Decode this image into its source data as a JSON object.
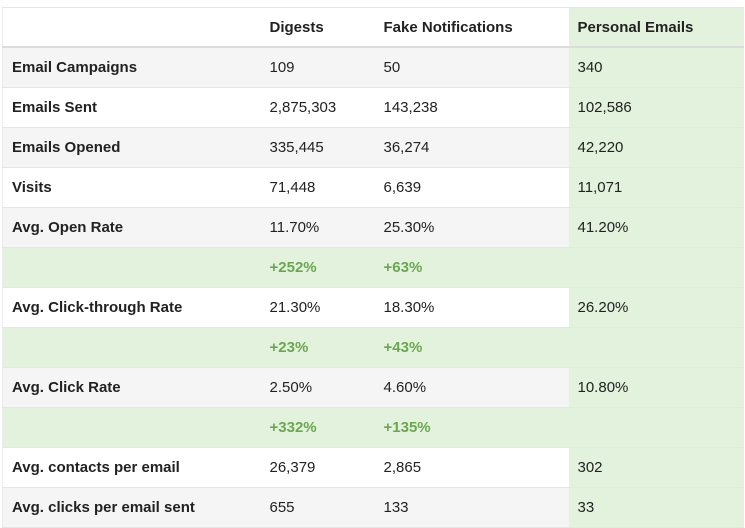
{
  "table": {
    "headers": [
      "",
      "Digests",
      "Fake Notifications",
      "Personal Emails"
    ],
    "rows": [
      {
        "type": "data",
        "label": "Email Campaigns",
        "digests": "109",
        "fake": "50",
        "personal": "340"
      },
      {
        "type": "data",
        "label": "Emails Sent",
        "digests": "2,875,303",
        "fake": "143,238",
        "personal": "102,586"
      },
      {
        "type": "data",
        "label": "Emails Opened",
        "digests": "335,445",
        "fake": "36,274",
        "personal": "42,220"
      },
      {
        "type": "data",
        "label": "Visits",
        "digests": "71,448",
        "fake": "6,639",
        "personal": "11,071"
      },
      {
        "type": "data",
        "label": "Avg. Open Rate",
        "digests": "11.70%",
        "fake": "25.30%",
        "personal": "41.20%"
      },
      {
        "type": "delta",
        "label": "",
        "digests": "+252%",
        "fake": "+63%",
        "personal": ""
      },
      {
        "type": "data",
        "label": "Avg. Click-through Rate",
        "digests": "21.30%",
        "fake": "18.30%",
        "personal": "26.20%"
      },
      {
        "type": "delta",
        "label": "",
        "digests": "+23%",
        "fake": "+43%",
        "personal": ""
      },
      {
        "type": "data",
        "label": "Avg. Click Rate",
        "digests": "2.50%",
        "fake": "4.60%",
        "personal": "10.80%"
      },
      {
        "type": "delta",
        "label": "",
        "digests": "+332%",
        "fake": "+135%",
        "personal": ""
      },
      {
        "type": "data",
        "label": "Avg. contacts per email",
        "digests": "26,379",
        "fake": "2,865",
        "personal": "302"
      },
      {
        "type": "data",
        "label": "Avg. clicks per email sent",
        "digests": "655",
        "fake": "133",
        "personal": "33"
      }
    ]
  },
  "colors": {
    "highlight_bg": "#e3f2dd",
    "delta_text": "#6aa84f",
    "striped_row_bg": "#f5f5f5"
  }
}
